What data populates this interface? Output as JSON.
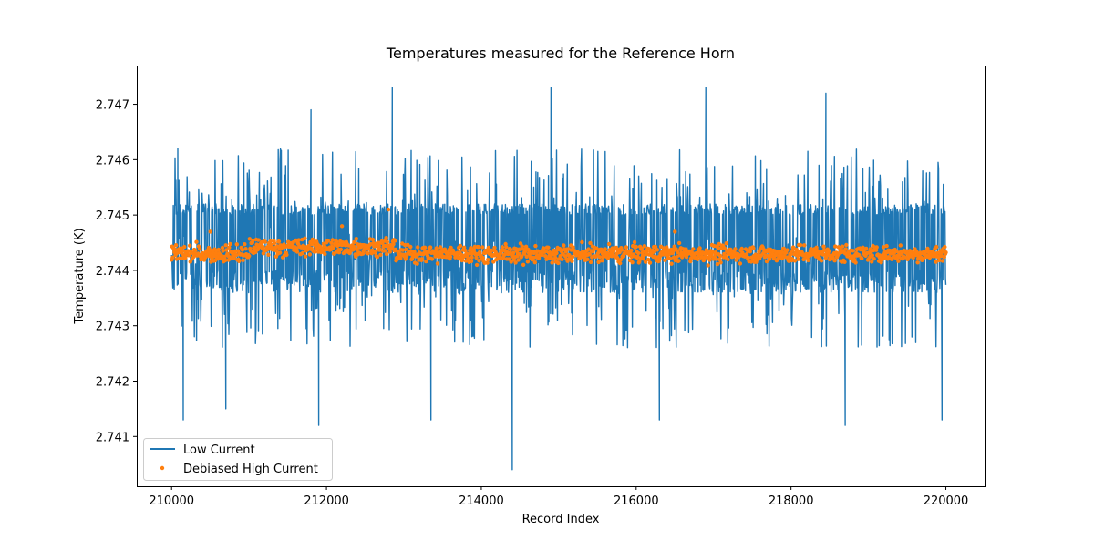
{
  "colors": {
    "low_current": "#1f77b4",
    "high_current": "#ff7f0e",
    "axis": "#000000",
    "legend_border": "#cccccc"
  },
  "chart_data": {
    "type": "line",
    "title": "Temperatures measured for the Reference Horn",
    "xlabel": "Record Index",
    "ylabel": "Temperature (K)",
    "xlim": [
      209550,
      220500
    ],
    "ylim": [
      2.7401,
      2.7477
    ],
    "x_ticks": [
      210000,
      212000,
      214000,
      216000,
      218000,
      220000
    ],
    "x_tick_labels": [
      "210000",
      "212000",
      "214000",
      "216000",
      "218000",
      "220000"
    ],
    "y_ticks": [
      2.741,
      2.742,
      2.743,
      2.744,
      2.745,
      2.746,
      2.747
    ],
    "y_tick_labels": [
      "2.741",
      "2.742",
      "2.743",
      "2.744",
      "2.745",
      "2.746",
      "2.747"
    ],
    "grid": false,
    "legend_position": "lower-left",
    "series": [
      {
        "name": "Low Current",
        "style": "line",
        "x_range": [
          210000,
          220000
        ],
        "baseline_mean": 2.7443,
        "typical_band": [
          2.7436,
          2.7452
        ],
        "notable_points": [
          {
            "x": 210080,
            "y": 2.7462
          },
          {
            "x": 210150,
            "y": 2.7413
          },
          {
            "x": 210700,
            "y": 2.7415
          },
          {
            "x": 211800,
            "y": 2.7469
          },
          {
            "x": 211900,
            "y": 2.7412
          },
          {
            "x": 212850,
            "y": 2.7473
          },
          {
            "x": 213350,
            "y": 2.7413
          },
          {
            "x": 214400,
            "y": 2.7404
          },
          {
            "x": 214900,
            "y": 2.7473
          },
          {
            "x": 216300,
            "y": 2.7413
          },
          {
            "x": 216900,
            "y": 2.7473
          },
          {
            "x": 218450,
            "y": 2.7472
          },
          {
            "x": 218700,
            "y": 2.7412
          },
          {
            "x": 219950,
            "y": 2.7413
          }
        ]
      },
      {
        "name": "Debiased High Current",
        "style": "scatter",
        "x_range": [
          210000,
          220000
        ],
        "mean": 2.7443,
        "typical_band": [
          2.7441,
          2.7446
        ],
        "notable_points": [
          {
            "x": 212800,
            "y": 2.7451
          },
          {
            "x": 212200,
            "y": 2.7448
          },
          {
            "x": 210500,
            "y": 2.7447
          },
          {
            "x": 216500,
            "y": 2.7447
          }
        ]
      }
    ]
  }
}
